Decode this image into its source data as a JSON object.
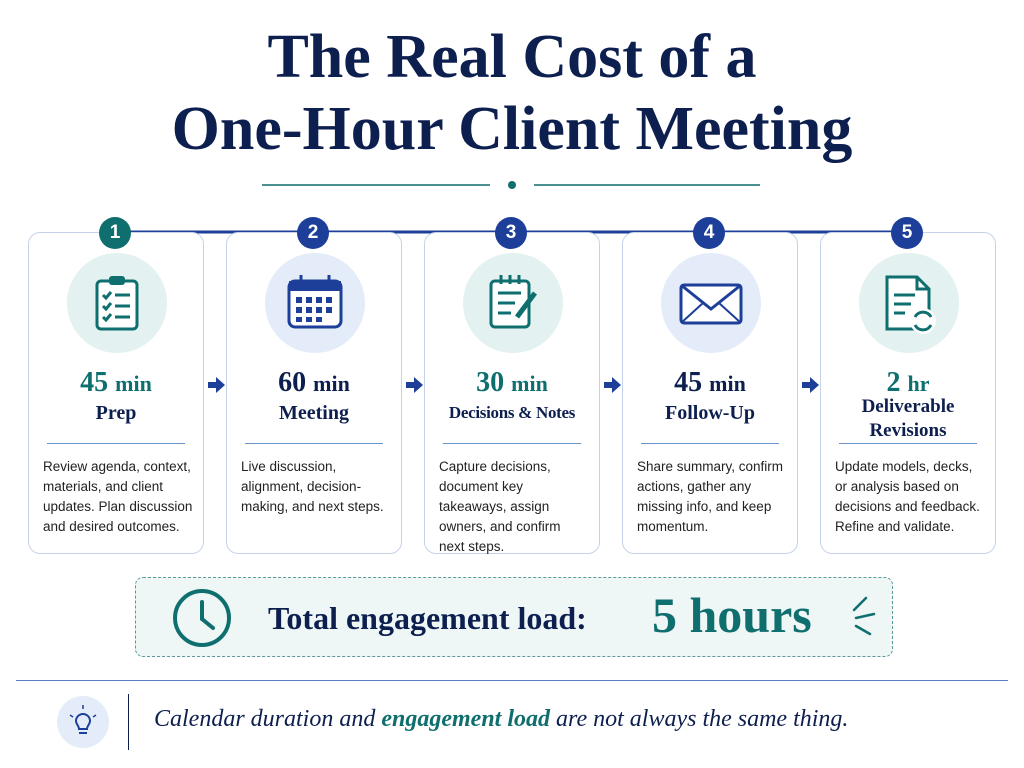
{
  "header": {
    "title_line_1": "The Real Cost of a",
    "title_line_2": "One-Hour Client Meeting"
  },
  "steps": [
    {
      "number": "1",
      "amount": "45",
      "unit": "min",
      "label": "Prep",
      "description": "Review agenda, context, materials, and client updates. Plan discussion and desired outcomes."
    },
    {
      "number": "2",
      "amount": "60",
      "unit": "min",
      "label": "Meeting",
      "description": "Live discussion, alignment, decision-making, and next steps."
    },
    {
      "number": "3",
      "amount": "30",
      "unit": "min",
      "label": "Decisions & Notes",
      "description": "Capture decisions, document key takeaways, assign owners, and confirm next steps."
    },
    {
      "number": "4",
      "amount": "45",
      "unit": "min",
      "label": "Follow-Up",
      "description": "Share summary, confirm actions, gather any missing info, and keep momentum."
    },
    {
      "number": "5",
      "amount": "2",
      "unit": "hr",
      "label": "Deliverable Revisions",
      "description": "Update models, decks, or analysis based on decisions and feedback. Refine and validate."
    }
  ],
  "total": {
    "label": "Total engagement load:",
    "value": "5 hours"
  },
  "footer": {
    "part_1": "Calendar duration and",
    "emphasis": "engagement load",
    "part_2": "are not always the same thing."
  }
}
